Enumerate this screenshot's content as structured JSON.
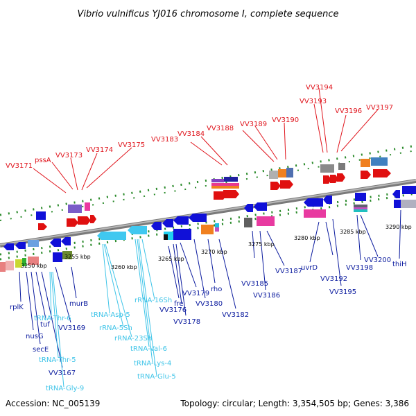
{
  "title": "Vibrio vulnificus YJ016 chromosome I, complete sequence",
  "footer": {
    "accession": "Accession: NC_005139",
    "summary": "Topology: circular; Length: 3,354,505 bp; Genes: 3,386"
  },
  "colors": {
    "forward_label": "#e0141c",
    "reverse_label": "#0a1a9e",
    "rna_label": "#3ec4e8",
    "backbone": "#8a8a8a",
    "dot": "#2a8a2a"
  },
  "ticks": [
    "3250 kbp",
    "3255 kbp",
    "3260 kbp",
    "3265 kbp",
    "3270 kbp",
    "3275 kbp",
    "3280 kbp",
    "3285 kbp",
    "3290 kbp"
  ],
  "labels_top": [
    "VV3171",
    "pssA",
    "VV3173",
    "VV3174",
    "VV3175",
    "VV3183",
    "VV3184",
    "VV3188",
    "VV3189",
    "VV3190",
    "VV3193",
    "VV3194",
    "VV3196",
    "VV3197"
  ],
  "labels_bottom": [
    "rplK",
    "nusG",
    "secE",
    "tuf",
    "VV3167",
    "VV3169",
    "murB",
    "fre",
    "VV3176",
    "VV3178",
    "VV3179",
    "rho",
    "VV3180",
    "VV3182",
    "VV3185",
    "VV3186",
    "VV3187",
    "uvrD",
    "VV3192",
    "VV3195",
    "VV3198",
    "VV3200",
    "thiH"
  ],
  "labels_rna": [
    "tRNA-Thr-6",
    "tRNA-Thr-5",
    "tRNA-Gly-9",
    "tRNA-Asp-5",
    "rRNA-5Sh",
    "rRNA-23Sh",
    "rRNA-16Sh",
    "tRNA-Val-6",
    "tRNA-Lys-4",
    "tRNA-Glu-5"
  ]
}
